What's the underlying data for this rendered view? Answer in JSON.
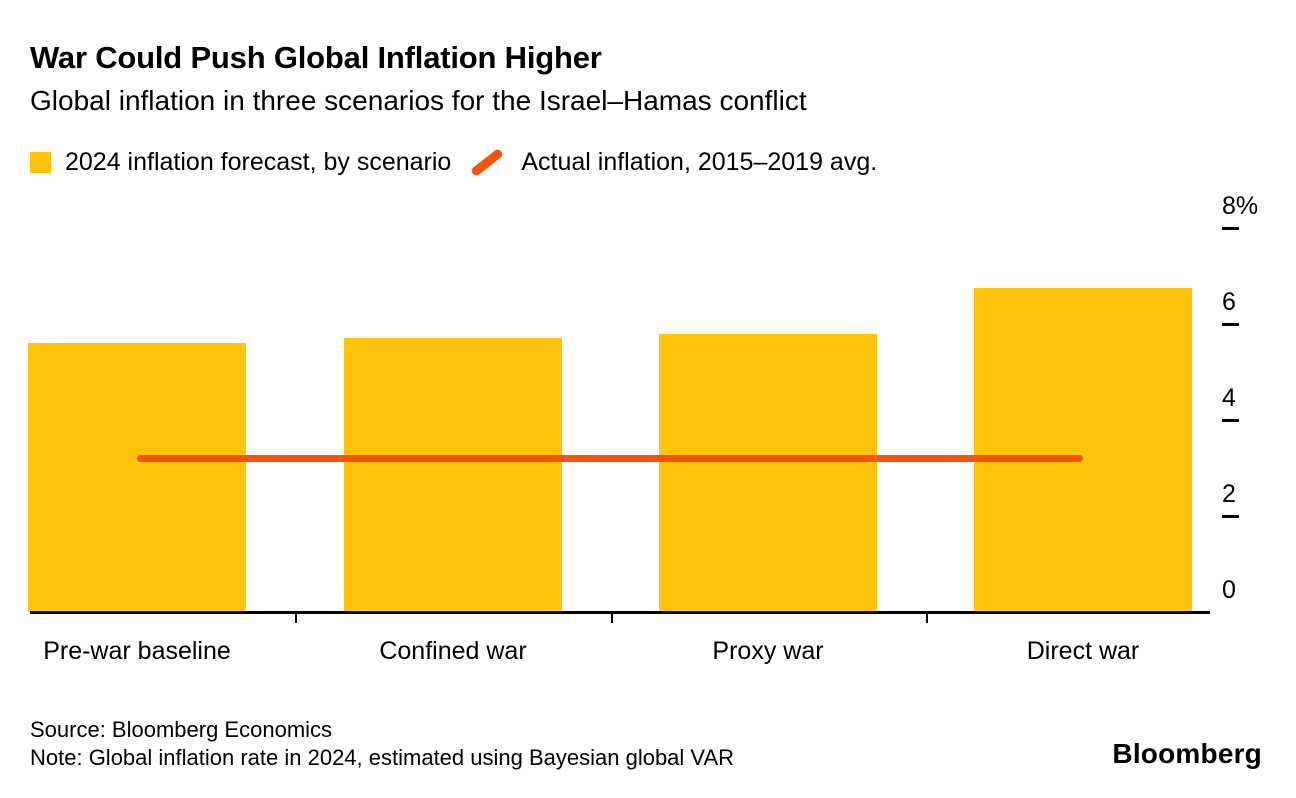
{
  "header": {
    "title": "War Could Push Global Inflation Higher",
    "subtitle": "Global inflation in three scenarios for the Israel–Hamas conflict"
  },
  "legend": [
    {
      "label": "2024 inflation forecast, by scenario",
      "swatch": "square",
      "color": "#ffc40a"
    },
    {
      "label": "Actual inflation, 2015–2019 avg.",
      "swatch": "slash",
      "color": "#f5520a"
    }
  ],
  "chart_data": {
    "type": "bar",
    "title": "War Could Push Global Inflation Higher",
    "subtitle": "Global inflation in three scenarios for the Israel–Hamas conflict",
    "categories": [
      "Pre-war baseline",
      "Confined war",
      "Proxy war",
      "Direct war"
    ],
    "values": [
      5.6,
      5.7,
      5.8,
      6.75
    ],
    "series_label": "2024 inflation forecast, by scenario",
    "reference_line": {
      "label": "Actual inflation, 2015–2019 avg.",
      "value": 3.2
    },
    "yticks": [
      0,
      2,
      4,
      6,
      8
    ],
    "ytick_labels": [
      "0",
      "2",
      "4",
      "6",
      "8%"
    ],
    "ylim": [
      0,
      8.5
    ],
    "ylabel": "",
    "xlabel": "",
    "grid": false,
    "legend_position": "top-left",
    "axis_side": "right",
    "bar_color": "#ffc40a",
    "line_color": "#f5520a"
  },
  "footer": {
    "source": "Source: Bloomberg Economics",
    "note": "Note: Global inflation rate in 2024, estimated using Bayesian global VAR",
    "brand": "Bloomberg"
  }
}
